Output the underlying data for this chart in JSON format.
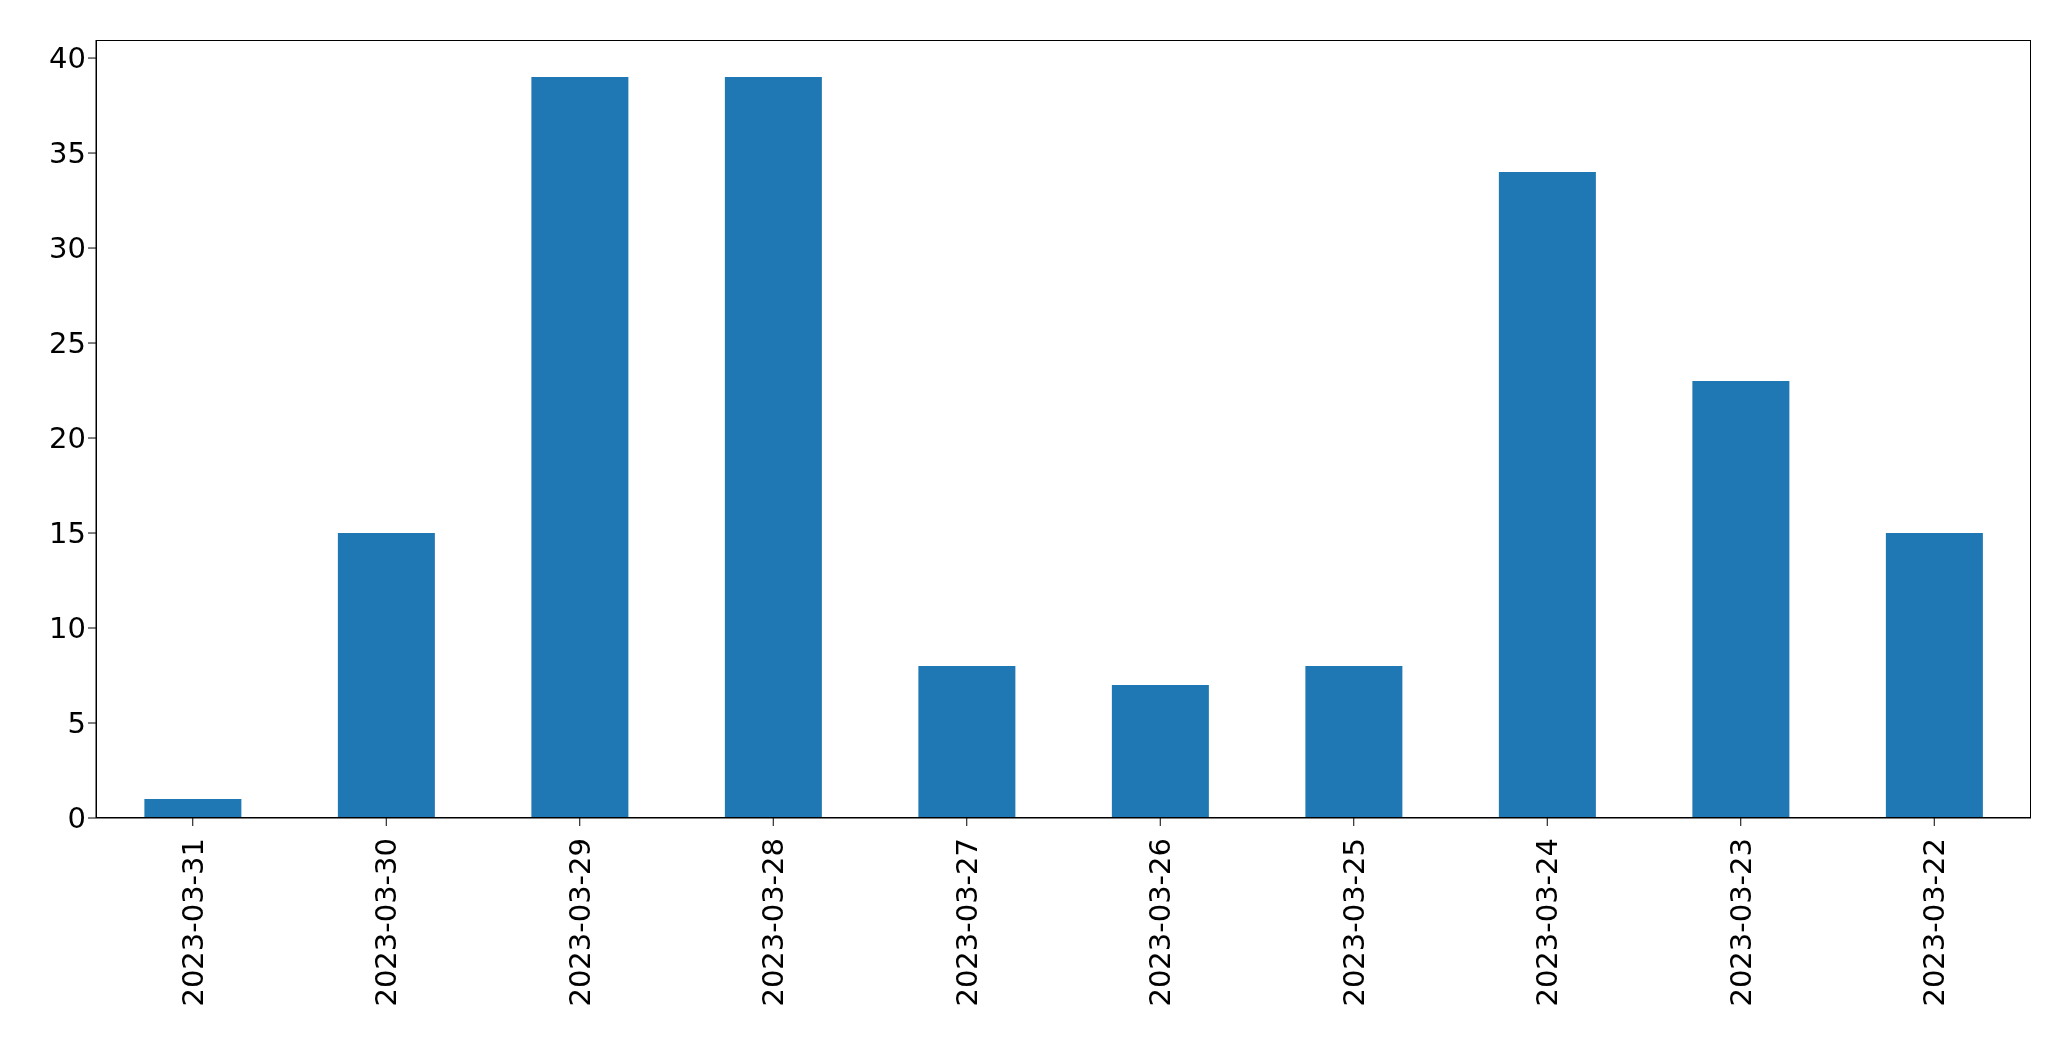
{
  "chart_data": {
    "type": "bar",
    "categories": [
      "2023-03-31",
      "2023-03-30",
      "2023-03-29",
      "2023-03-28",
      "2023-03-27",
      "2023-03-26",
      "2023-03-25",
      "2023-03-24",
      "2023-03-23",
      "2023-03-22"
    ],
    "values": [
      1,
      15,
      39,
      39,
      8,
      7,
      8,
      34,
      23,
      15
    ],
    "color": "#1f77b4",
    "ylim": [
      0,
      40.95
    ],
    "yticks": [
      0,
      5,
      10,
      15,
      20,
      25,
      30,
      35,
      40
    ],
    "grid": false,
    "legend": false
  }
}
